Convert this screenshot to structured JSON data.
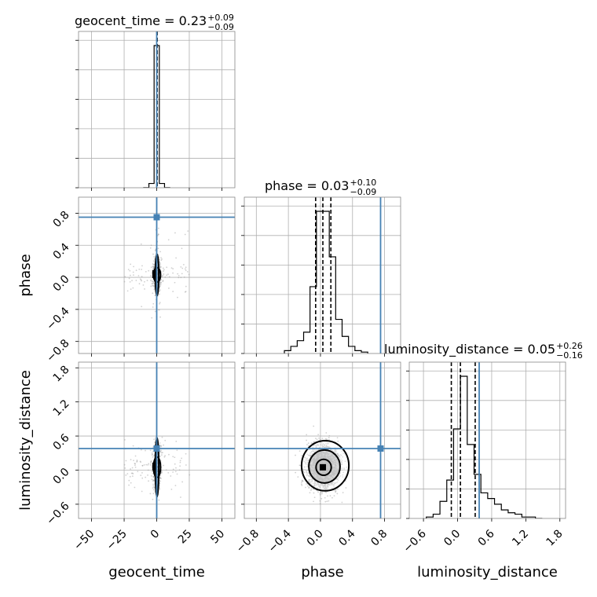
{
  "chart_data": {
    "type": "corner",
    "parameters": [
      "geocent_time",
      "phase",
      "luminosity_distance"
    ],
    "axis_labels": {
      "x": [
        "geocent_time",
        "phase",
        "luminosity_distance"
      ],
      "y": [
        "",
        "phase",
        "luminosity_distance"
      ]
    },
    "titles": [
      {
        "param": "geocent_time",
        "label": "geocent_time = 0.23",
        "sup": "+0.09",
        "sub": "−0.09"
      },
      {
        "param": "phase",
        "label": "phase = 0.03",
        "sup": "+0.10",
        "sub": "−0.09"
      },
      {
        "param": "luminosity_distance",
        "label": "luminosity_distance = 0.05",
        "sup": "+0.26",
        "sub": "−0.16"
      }
    ],
    "ranges": {
      "geocent_time": [
        -60,
        60
      ],
      "phase": [
        -0.95,
        1.0
      ],
      "luminosity_distance": [
        -0.85,
        1.9
      ]
    },
    "ticks": {
      "geocent_time": [
        -50,
        -25,
        0,
        25,
        50
      ],
      "phase": [
        -0.8,
        -0.4,
        0.0,
        0.4,
        0.8
      ],
      "luminosity_distance": [
        -0.6,
        0.0,
        0.6,
        1.2,
        1.8
      ]
    },
    "tick_labels": {
      "geocent_time": [
        "−50",
        "−25",
        "0",
        "25",
        "50"
      ],
      "phase": [
        "−0.8",
        "−0.4",
        "0.0",
        "0.4",
        "0.8"
      ],
      "luminosity_distance": [
        "−0.6",
        "0.0",
        "0.6",
        "1.2",
        "1.8"
      ]
    },
    "truths": {
      "geocent_time": 0.0,
      "phase": 0.75,
      "luminosity_distance": 0.38
    },
    "quantiles": {
      "geocent_time": [
        0.14,
        0.23,
        0.32
      ],
      "phase": [
        -0.06,
        0.03,
        0.13
      ],
      "luminosity_distance": [
        -0.11,
        0.05,
        0.31
      ]
    },
    "histograms": {
      "geocent_time": {
        "edges": [
          -10,
          -6,
          -2,
          2,
          6,
          10
        ],
        "counts": [
          1,
          30,
          1000,
          30,
          1
        ]
      },
      "phase": {
        "edges": [
          -0.45,
          -0.37,
          -0.29,
          -0.21,
          -0.13,
          -0.05,
          0.03,
          0.11,
          0.19,
          0.27,
          0.35,
          0.43,
          0.51,
          0.59
        ],
        "counts": [
          2,
          5,
          9,
          15,
          47,
          100,
          100,
          68,
          24,
          12,
          5,
          2,
          1
        ]
      },
      "luminosity_distance": {
        "edges": [
          -0.55,
          -0.43,
          -0.31,
          -0.19,
          -0.07,
          0.05,
          0.17,
          0.29,
          0.41,
          0.53,
          0.65,
          0.77,
          0.89,
          1.01,
          1.13,
          1.25,
          1.37,
          1.49
        ],
        "counts": [
          1,
          3,
          12,
          27,
          63,
          100,
          52,
          31,
          18,
          14,
          10,
          6,
          4,
          3,
          1,
          1,
          0
        ]
      }
    },
    "posterior_center": {
      "geocent_time": 0.23,
      "phase": 0.03,
      "luminosity_distance": 0.05
    },
    "posterior_spread": {
      "geocent_time": 1.6,
      "phase": 0.1,
      "luminosity_distance": 0.2
    },
    "grid": true
  }
}
